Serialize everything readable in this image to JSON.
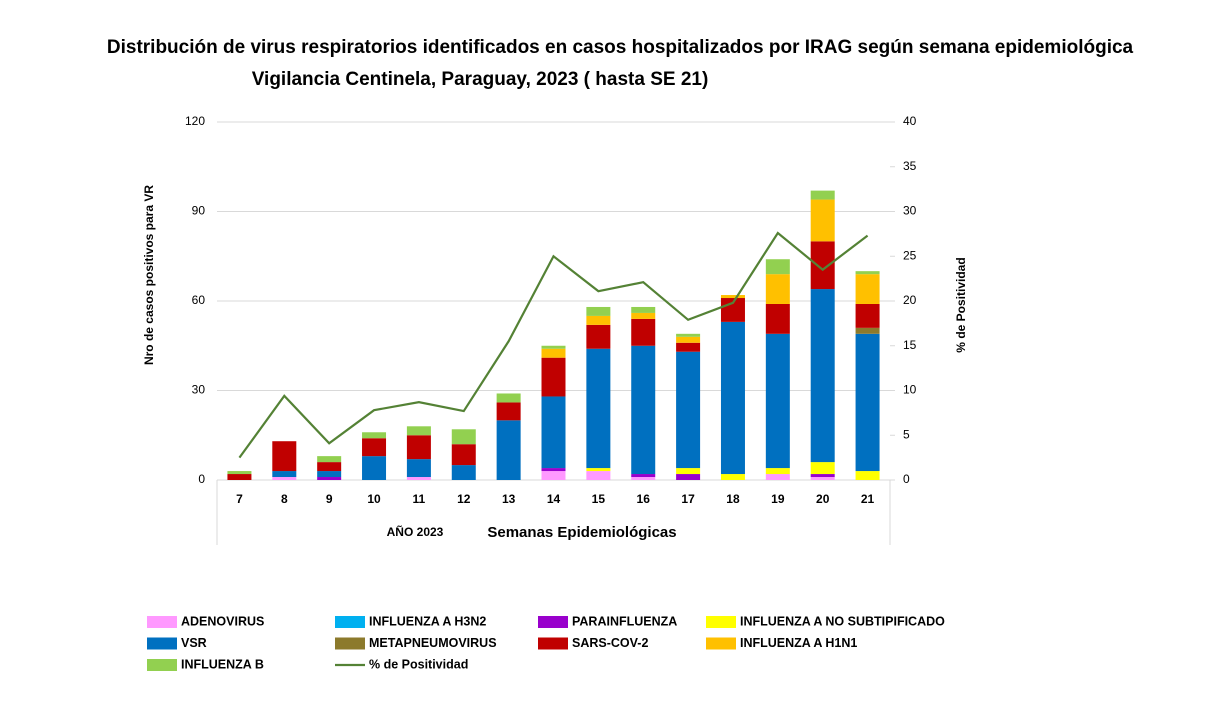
{
  "chart_data": {
    "type": "bar",
    "title": "Distribución de virus respiratorios identificados en casos hospitalizados por IRAG según semana epidemiológica",
    "subtitle": "Vigilancia Centinela, Paraguay,  2023 ( hasta SE 21)",
    "y_label": "Nro de casos positivos para VR",
    "y2_label": "% de Positividad",
    "x_label": "Semanas Epidemiológicas",
    "x_group_label": "AÑO 2023",
    "stacked": true,
    "categories": [
      "7",
      "8",
      "9",
      "10",
      "11",
      "12",
      "13",
      "14",
      "15",
      "16",
      "17",
      "18",
      "19",
      "20",
      "21"
    ],
    "ylim": [
      0,
      120
    ],
    "yticks": [
      0,
      30,
      60,
      90,
      120
    ],
    "y2lim": [
      0,
      40
    ],
    "y2ticks": [
      0,
      5,
      10,
      15,
      20,
      25,
      30,
      35,
      40
    ],
    "series": [
      {
        "name": "ADENOVIRUS",
        "color": "#ff99ff",
        "values": [
          0,
          1,
          0,
          0,
          1,
          0,
          0,
          3,
          3,
          1,
          0,
          0,
          2,
          1,
          0
        ]
      },
      {
        "name": "INFLUENZA A H3N2",
        "color": "#00b0f0",
        "values": [
          0,
          0,
          0,
          0,
          0,
          0,
          0,
          0,
          0,
          0,
          0,
          0,
          0,
          0,
          0
        ]
      },
      {
        "name": "PARAINFLUENZA",
        "color": "#9900cc",
        "values": [
          0,
          0,
          1,
          0,
          0,
          0,
          0,
          1,
          0,
          1,
          2,
          0,
          0,
          1,
          0
        ]
      },
      {
        "name": "INFLUENZA A NO SUBTIPIFICADO",
        "color": "#ffff00",
        "values": [
          0,
          0,
          0,
          0,
          0,
          0,
          0,
          0,
          1,
          0,
          2,
          2,
          2,
          4,
          3
        ]
      },
      {
        "name": "VSR",
        "color": "#0070c0",
        "values": [
          0,
          2,
          2,
          8,
          6,
          5,
          20,
          24,
          40,
          43,
          39,
          51,
          45,
          58,
          46
        ]
      },
      {
        "name": "METAPNEUMOVIRUS",
        "color": "#8c7a2c",
        "values": [
          0,
          0,
          0,
          0,
          0,
          0,
          0,
          0,
          0,
          0,
          0,
          0,
          0,
          0,
          2
        ]
      },
      {
        "name": "SARS-COV-2",
        "color": "#c00000",
        "values": [
          2,
          10,
          3,
          6,
          8,
          7,
          6,
          13,
          8,
          9,
          3,
          8,
          10,
          16,
          8
        ]
      },
      {
        "name": "INFLUENZA A H1N1",
        "color": "#ffc000",
        "values": [
          0,
          0,
          0,
          0,
          0,
          0,
          0,
          3,
          3,
          2,
          2,
          1,
          10,
          14,
          10
        ]
      },
      {
        "name": "INFLUENZA B",
        "color": "#92d050",
        "values": [
          1,
          0,
          2,
          2,
          3,
          5,
          3,
          1,
          3,
          2,
          1,
          0,
          5,
          3,
          1
        ]
      },
      {
        "name": "% de Positividad",
        "color": "#548235",
        "axis": "y2",
        "values": [
          2.5,
          9.4,
          4.1,
          7.8,
          8.7,
          7.7,
          15.5,
          25,
          21.1,
          22.1,
          17.9,
          19.8,
          27.6,
          23.5,
          27.3
        ]
      }
    ]
  }
}
